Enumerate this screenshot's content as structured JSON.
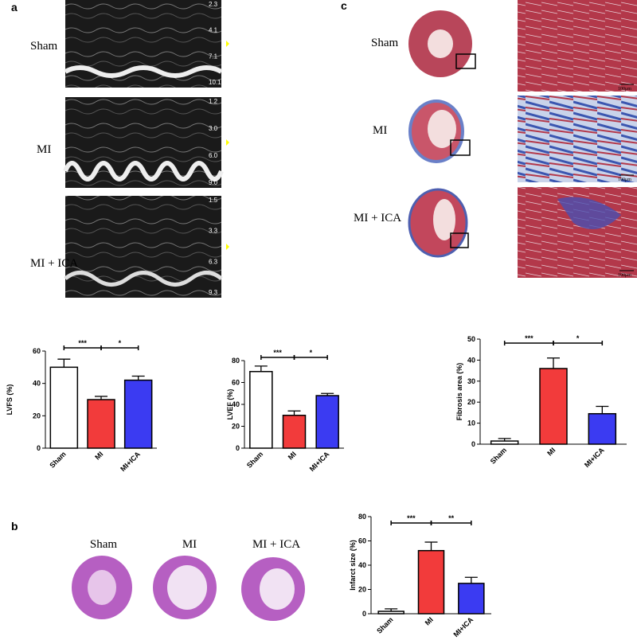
{
  "panel_labels": [
    "a",
    "b",
    "c"
  ],
  "echo": {
    "labels": [
      "Sham",
      "MI",
      "MI + ICA"
    ],
    "scales": [
      [
        "2.3",
        "4.1",
        "7.1",
        "10.1"
      ],
      [
        "1.2",
        "3.0",
        "6.0",
        "9.0"
      ],
      [
        "1.5",
        "3.3",
        "6.3",
        "9.3"
      ]
    ]
  },
  "staining": {
    "labels": [
      "Sham",
      "MI",
      "MI + ICA"
    ]
  },
  "histology": {
    "labels": [
      "Sham",
      "MI",
      "MI + ICA"
    ],
    "scale_bars": [
      "100μm",
      "100μm",
      "100μm"
    ]
  },
  "chart_data": [
    {
      "type": "bar",
      "y_label": "LVFS (%)",
      "categories": [
        "Sham",
        "MI",
        "MI+ICA"
      ],
      "values": [
        50,
        30,
        42
      ],
      "errors": [
        5,
        2,
        2.5
      ],
      "colors": [
        "#ffffff",
        "#f23b3b",
        "#3b3bf2"
      ],
      "ylim": [
        0,
        60
      ],
      "yticks": [
        0,
        20,
        40,
        60
      ],
      "significance": [
        "***",
        "*"
      ]
    },
    {
      "type": "bar",
      "y_label": "LVEF (%)",
      "categories": [
        "Sham",
        "MI",
        "MI+ICA"
      ],
      "values": [
        70,
        30,
        48
      ],
      "errors": [
        5,
        4,
        2
      ],
      "colors": [
        "#ffffff",
        "#f23b3b",
        "#3b3bf2"
      ],
      "ylim": [
        0,
        80
      ],
      "yticks": [
        0,
        20,
        40,
        60,
        80
      ],
      "significance": [
        "***",
        "*"
      ]
    },
    {
      "type": "bar",
      "y_label": "Fibrosis area (%)",
      "categories": [
        "Sham",
        "MI",
        "MI+ICA"
      ],
      "values": [
        1.5,
        36,
        14.5
      ],
      "errors": [
        1.2,
        5,
        3.5
      ],
      "colors": [
        "#ffffff",
        "#f23b3b",
        "#3b3bf2"
      ],
      "ylim": [
        0,
        50
      ],
      "yticks": [
        0,
        10,
        20,
        30,
        40,
        50
      ],
      "significance": [
        "***",
        "*"
      ]
    },
    {
      "type": "bar",
      "y_label": "Infarct size (%)",
      "categories": [
        "Sham",
        "MI",
        "MI+ICA"
      ],
      "values": [
        2,
        52,
        25
      ],
      "errors": [
        2,
        7,
        5
      ],
      "colors": [
        "#ffffff",
        "#f23b3b",
        "#3b3bf2"
      ],
      "ylim": [
        0,
        80
      ],
      "yticks": [
        0,
        20,
        40,
        60,
        80
      ],
      "significance": [
        "***",
        "**"
      ]
    }
  ]
}
